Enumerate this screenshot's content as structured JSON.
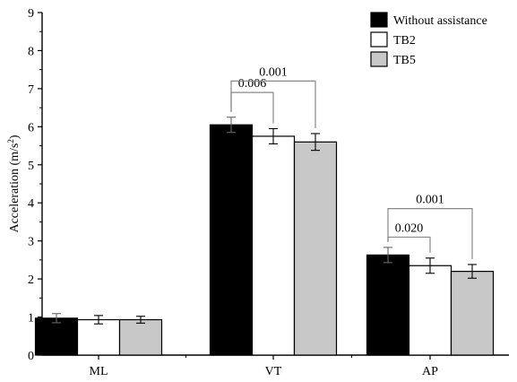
{
  "chart_data": {
    "type": "bar",
    "title": "",
    "xlabel": "",
    "ylabel": "Acceleration (m/s²)",
    "ylabel_base": "Acceleration (m/s",
    "ylabel_sup": "2",
    "ylabel_end": ")",
    "ylim": [
      0,
      9
    ],
    "yticks": [
      "0",
      "1",
      "2",
      "3",
      "4",
      "5",
      "6",
      "7",
      "8",
      "9"
    ],
    "categories": [
      "ML",
      "VT",
      "AP"
    ],
    "series": [
      {
        "name": "Without assistance",
        "color": "#000000",
        "values": [
          0.97,
          6.05,
          2.63
        ],
        "errors": [
          0.12,
          0.2,
          0.2
        ]
      },
      {
        "name": "TB2",
        "color": "#ffffff",
        "values": [
          0.93,
          5.75,
          2.35
        ],
        "errors": [
          0.11,
          0.2,
          0.2
        ]
      },
      {
        "name": "TB5",
        "color": "#c8c8c8",
        "values": [
          0.93,
          5.6,
          2.2
        ],
        "errors": [
          0.09,
          0.22,
          0.18
        ]
      }
    ],
    "annotations": [
      {
        "category": 1,
        "from_series": 0,
        "to_series": 1,
        "label": "0.006",
        "level": 6.9
      },
      {
        "category": 1,
        "from_series": 0,
        "to_series": 2,
        "label": "0.001",
        "level": 7.2
      },
      {
        "category": 2,
        "from_series": 0,
        "to_series": 1,
        "label": "0.020",
        "level": 3.1
      },
      {
        "category": 2,
        "from_series": 0,
        "to_series": 2,
        "label": "0.001",
        "level": 3.85
      }
    ],
    "legend_position": "top-right",
    "grid": false
  }
}
